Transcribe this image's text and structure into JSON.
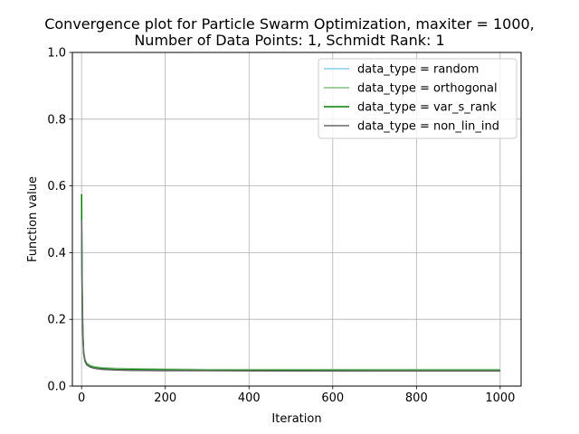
{
  "chart_data": {
    "type": "line",
    "title_lines": [
      "Convergence plot for Particle Swarm Optimization, maxiter = 1000,",
      "Number of Data Points: 1, Schmidt Rank: 1"
    ],
    "xlabel": "Iteration",
    "ylabel": "Function value",
    "xlim": [
      -22,
      1050
    ],
    "ylim": [
      0,
      1.0
    ],
    "xticks": [
      0,
      200,
      400,
      600,
      800,
      1000
    ],
    "yticks": [
      0.0,
      0.2,
      0.4,
      0.6,
      0.8,
      1.0
    ],
    "xtick_labels": [
      "0",
      "200",
      "400",
      "600",
      "800",
      "1000"
    ],
    "ytick_labels": [
      "0.0",
      "0.2",
      "0.4",
      "0.6",
      "0.8",
      "1.0"
    ],
    "grid": true,
    "legend_position": "top-right",
    "series": [
      {
        "name": "data_type = random",
        "color": "#87ceeb",
        "x": [
          0,
          1,
          2,
          3,
          5,
          8,
          12,
          20,
          30,
          50,
          80,
          120,
          200,
          300,
          500,
          700,
          1000
        ],
        "y": [
          0.5,
          0.33,
          0.22,
          0.15,
          0.1,
          0.078,
          0.068,
          0.061,
          0.057,
          0.054,
          0.052,
          0.051,
          0.05,
          0.049,
          0.049,
          0.048,
          0.048
        ]
      },
      {
        "name": "data_type = orthogonal",
        "color": "#7fbf7f",
        "x": [
          0,
          1,
          2,
          3,
          5,
          8,
          12,
          20,
          30,
          50,
          80,
          120,
          200,
          300,
          500,
          700,
          1000
        ],
        "y": [
          0.52,
          0.34,
          0.23,
          0.16,
          0.1,
          0.079,
          0.069,
          0.062,
          0.058,
          0.055,
          0.053,
          0.052,
          0.051,
          0.05,
          0.05,
          0.05,
          0.05
        ]
      },
      {
        "name": "data_type = var_s_rank",
        "color": "#008000",
        "x": [
          0,
          1,
          2,
          3,
          5,
          8,
          12,
          20,
          30,
          50,
          80,
          120,
          200,
          300,
          500,
          700,
          1000
        ],
        "y": [
          0.575,
          0.36,
          0.24,
          0.16,
          0.1,
          0.077,
          0.066,
          0.059,
          0.055,
          0.052,
          0.05,
          0.049,
          0.048,
          0.047,
          0.047,
          0.046,
          0.046
        ]
      },
      {
        "name": "data_type = non_lin_ind",
        "color": "#696969",
        "x": [
          0,
          1,
          2,
          3,
          5,
          8,
          12,
          20,
          30,
          50,
          80,
          120,
          200,
          300,
          500,
          700,
          1000
        ],
        "y": [
          0.5,
          0.32,
          0.21,
          0.145,
          0.095,
          0.074,
          0.064,
          0.057,
          0.053,
          0.05,
          0.048,
          0.047,
          0.046,
          0.046,
          0.045,
          0.045,
          0.045
        ]
      }
    ]
  }
}
